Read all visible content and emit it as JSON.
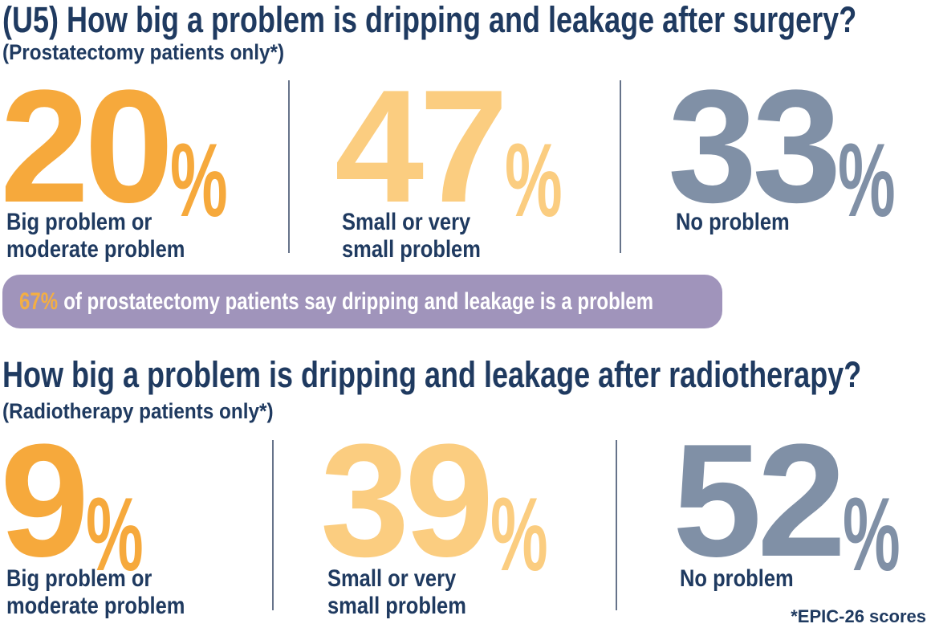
{
  "colors": {
    "navy": "#1F3A60",
    "orange": "#F6A93C",
    "light_orange": "#FBCD80",
    "gray_blue": "#8090A6",
    "purple_banner": "#A094BB",
    "banner_highlight": "#F3AE44",
    "divider": "#66738A",
    "background": "#FFFFFF"
  },
  "sections": [
    {
      "title": "(U5) How big a problem is dripping and leakage after surgery?",
      "subtitle": "(Prostatectomy patients only*)",
      "stats": [
        {
          "value": "20",
          "unit": "%",
          "label": "Big problem or\nmoderate problem"
        },
        {
          "value": "47",
          "unit": "%",
          "label": "Small or very\nsmall problem"
        },
        {
          "value": "33",
          "unit": "%",
          "label": "No problem"
        }
      ],
      "banner": {
        "highlight": "67%",
        "text": "of prostatectomy patients say dripping and leakage is a problem"
      }
    },
    {
      "title": "How big a problem is dripping and leakage after radiotherapy?",
      "subtitle": "(Radiotherapy patients only*)",
      "stats": [
        {
          "value": "9",
          "unit": "%",
          "label": "Big problem or\nmoderate problem"
        },
        {
          "value": "39",
          "unit": "%",
          "label": "Small or very\nsmall problem"
        },
        {
          "value": "52",
          "unit": "%",
          "label": "No problem"
        }
      ]
    }
  ],
  "footnote": "*EPIC-26 scores",
  "chart_data": [
    {
      "type": "table",
      "title": "(U5) How big a problem is dripping and leakage after surgery?",
      "subtitle": "(Prostatectomy patients only*)",
      "categories": [
        "Big problem or moderate problem",
        "Small or very small problem",
        "No problem"
      ],
      "values": [
        20,
        47,
        33
      ],
      "unit": "percent",
      "annotation": "67% of prostatectomy patients say dripping and leakage is a problem"
    },
    {
      "type": "table",
      "title": "How big a problem is dripping and leakage after radiotherapy?",
      "subtitle": "(Radiotherapy patients only*)",
      "categories": [
        "Big problem or moderate problem",
        "Small or very small problem",
        "No problem"
      ],
      "values": [
        9,
        39,
        52
      ],
      "unit": "percent",
      "footnote": "*EPIC-26 scores"
    }
  ]
}
